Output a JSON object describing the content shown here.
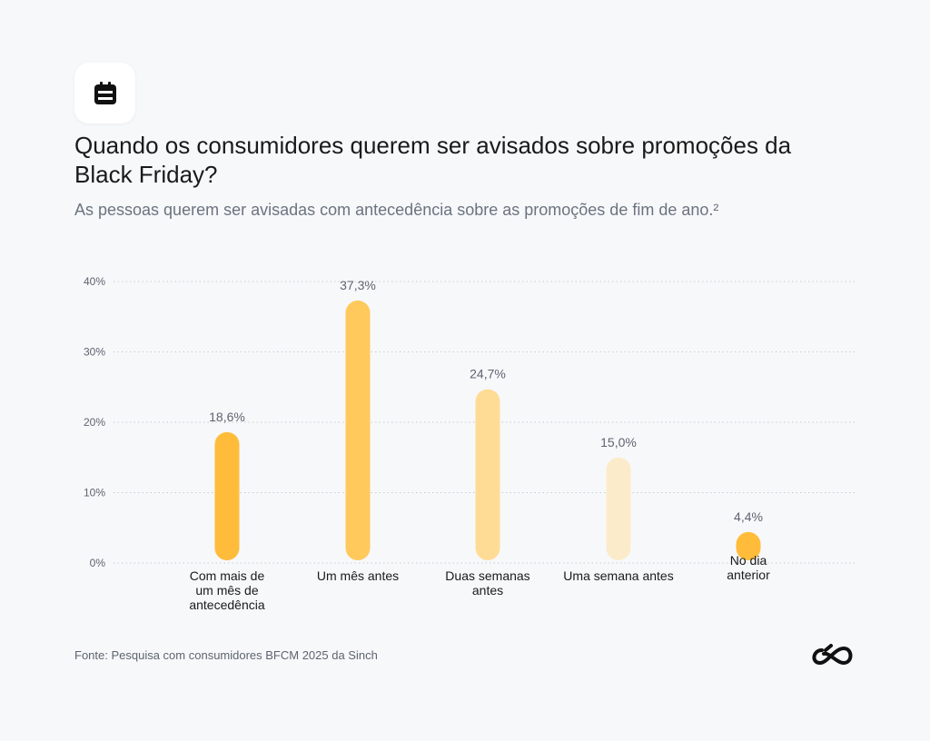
{
  "header": {
    "icon": "calendar-icon",
    "title": "Quando os consumidores querem ser avisados sobre promoções da Black Friday?",
    "subtitle": "As pessoas querem ser avisadas com antecedência sobre as promoções de fim de ano.²"
  },
  "footer": {
    "source": "Fonte: Pesquisa com consumidores BFCM 2025 da Sinch",
    "logo": "sinch-logo"
  },
  "chart_data": {
    "type": "bar",
    "categories": [
      "Com mais de um mês de antecedência",
      "Um mês antes",
      "Duas semanas antes",
      "Uma semana antes",
      "No dia anterior"
    ],
    "category_lines": [
      [
        "Com mais de",
        "um mês de",
        "antecedência"
      ],
      [
        "Um mês antes"
      ],
      [
        "Duas semanas",
        "antes"
      ],
      [
        "Uma semana antes"
      ],
      [
        "No dia",
        "anterior"
      ]
    ],
    "values": [
      18.6,
      37.3,
      24.7,
      15.0,
      4.4
    ],
    "data_labels": [
      "18,6%",
      "37,3%",
      "24,7%",
      "15,0%",
      "4,4%"
    ],
    "colors": [
      "#FFBC3A",
      "#FFC95C",
      "#FFDC96",
      "#FCEBCB",
      "#FFBC3A"
    ],
    "yticks": [
      0,
      10,
      20,
      30,
      40
    ],
    "ytick_labels": [
      "0%",
      "10%",
      "20%",
      "30%",
      "40%"
    ],
    "ylim": [
      0,
      40
    ],
    "grid": true,
    "xlabel": "",
    "ylabel": ""
  }
}
